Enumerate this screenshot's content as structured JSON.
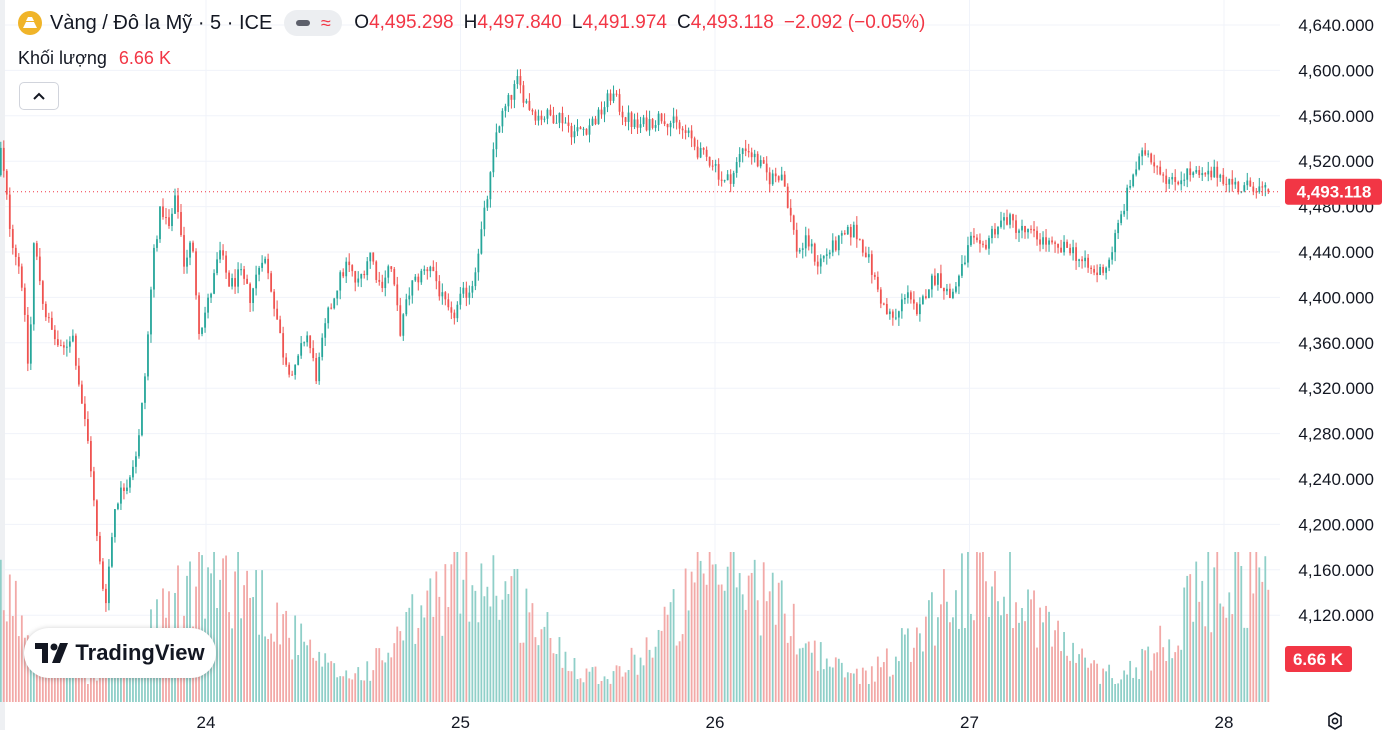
{
  "header": {
    "symbol_title": "Vàng / Đô la Mỹ · 5 · ICE",
    "symbol_icon": "gold-bars-icon",
    "ohlc": [
      {
        "key": "O",
        "value": "4,495.298"
      },
      {
        "key": "H",
        "value": "4,497.840"
      },
      {
        "key": "L",
        "value": "4,491.974"
      },
      {
        "key": "C",
        "value": "4,493.118"
      }
    ],
    "change": "−2.092 (−0.05%)"
  },
  "volume_legend": {
    "label": "Khối lượng",
    "value": "6.66 K"
  },
  "watermark": {
    "text": "TradingView"
  },
  "colors": {
    "up": "#26a69a",
    "down": "#ef5350",
    "up_vol": "#8fcfc8",
    "down_vol": "#f2a9a7",
    "price_tag": "#f23645",
    "grid": "#f0f3fa",
    "axis_text": "#131722"
  },
  "chart_data": {
    "type": "candlestick",
    "interval": "5",
    "symbol": "Vàng / Đô la Mỹ",
    "exchange": "ICE",
    "y_ticks": [
      "4,120.000",
      "4,160.000",
      "4,200.000",
      "4,240.000",
      "4,280.000",
      "4,320.000",
      "4,360.000",
      "4,400.000",
      "4,440.000",
      "4,480.000",
      "4,520.000",
      "4,560.000",
      "4,600.000",
      "4,640.000"
    ],
    "y_tick_values": [
      4120,
      4160,
      4200,
      4240,
      4280,
      4320,
      4360,
      4400,
      4440,
      4480,
      4520,
      4560,
      4600,
      4640
    ],
    "y_scale": {
      "min": 4050,
      "max": 4660
    },
    "x_ticks": [
      "24",
      "25",
      "26",
      "27",
      "28"
    ],
    "x_range": [
      23.176,
      28.18
    ],
    "last_price": 4493.118,
    "last_price_label": "4,493.118",
    "last_volume_label": "6.66 K",
    "price_anchors": [
      [
        23.18,
        4490
      ],
      [
        23.2,
        4530
      ],
      [
        23.24,
        4455
      ],
      [
        23.28,
        4420
      ],
      [
        23.31,
        4330
      ],
      [
        23.33,
        4450
      ],
      [
        23.37,
        4390
      ],
      [
        23.4,
        4370
      ],
      [
        23.44,
        4350
      ],
      [
        23.48,
        4370
      ],
      [
        23.51,
        4320
      ],
      [
        23.55,
        4260
      ],
      [
        23.58,
        4180
      ],
      [
        23.61,
        4130
      ],
      [
        23.65,
        4220
      ],
      [
        23.7,
        4240
      ],
      [
        23.74,
        4270
      ],
      [
        23.77,
        4340
      ],
      [
        23.8,
        4440
      ],
      [
        23.83,
        4480
      ],
      [
        23.86,
        4460
      ],
      [
        23.89,
        4490
      ],
      [
        23.92,
        4430
      ],
      [
        23.95,
        4450
      ],
      [
        23.98,
        4370
      ],
      [
        24.02,
        4400
      ],
      [
        24.06,
        4440
      ],
      [
        24.1,
        4410
      ],
      [
        24.14,
        4420
      ],
      [
        24.18,
        4400
      ],
      [
        24.23,
        4440
      ],
      [
        24.27,
        4400
      ],
      [
        24.31,
        4350
      ],
      [
        24.35,
        4330
      ],
      [
        24.4,
        4370
      ],
      [
        24.44,
        4330
      ],
      [
        24.48,
        4380
      ],
      [
        24.52,
        4410
      ],
      [
        24.56,
        4430
      ],
      [
        24.6,
        4410
      ],
      [
        24.65,
        4440
      ],
      [
        24.69,
        4410
      ],
      [
        24.73,
        4430
      ],
      [
        24.77,
        4370
      ],
      [
        24.81,
        4410
      ],
      [
        24.85,
        4420
      ],
      [
        24.89,
        4430
      ],
      [
        24.93,
        4400
      ],
      [
        24.97,
        4380
      ],
      [
        25.01,
        4400
      ],
      [
        25.05,
        4410
      ],
      [
        25.09,
        4460
      ],
      [
        25.12,
        4500
      ],
      [
        25.15,
        4550
      ],
      [
        25.19,
        4570
      ],
      [
        25.23,
        4590
      ],
      [
        25.27,
        4570
      ],
      [
        25.31,
        4560
      ],
      [
        25.36,
        4560
      ],
      [
        25.4,
        4560
      ],
      [
        25.45,
        4545
      ],
      [
        25.5,
        4550
      ],
      [
        25.55,
        4560
      ],
      [
        25.6,
        4580
      ],
      [
        25.65,
        4560
      ],
      [
        25.7,
        4550
      ],
      [
        25.75,
        4555
      ],
      [
        25.8,
        4560
      ],
      [
        25.86,
        4550
      ],
      [
        25.91,
        4540
      ],
      [
        25.95,
        4525
      ],
      [
        26.0,
        4520
      ],
      [
        26.04,
        4500
      ],
      [
        26.08,
        4510
      ],
      [
        26.12,
        4535
      ],
      [
        26.17,
        4520
      ],
      [
        26.22,
        4505
      ],
      [
        26.27,
        4510
      ],
      [
        26.33,
        4440
      ],
      [
        26.37,
        4450
      ],
      [
        26.41,
        4430
      ],
      [
        26.45,
        4440
      ],
      [
        26.5,
        4450
      ],
      [
        26.55,
        4460
      ],
      [
        26.6,
        4440
      ],
      [
        26.64,
        4410
      ],
      [
        26.68,
        4385
      ],
      [
        26.72,
        4380
      ],
      [
        26.76,
        4410
      ],
      [
        26.8,
        4380
      ],
      [
        26.84,
        4410
      ],
      [
        26.88,
        4420
      ],
      [
        26.93,
        4400
      ],
      [
        26.97,
        4420
      ],
      [
        27.01,
        4450
      ],
      [
        27.05,
        4440
      ],
      [
        27.1,
        4460
      ],
      [
        27.15,
        4470
      ],
      [
        27.2,
        4460
      ],
      [
        27.25,
        4455
      ],
      [
        27.3,
        4450
      ],
      [
        27.35,
        4440
      ],
      [
        27.4,
        4445
      ],
      [
        27.45,
        4430
      ],
      [
        27.5,
        4420
      ],
      [
        27.55,
        4430
      ],
      [
        27.6,
        4470
      ],
      [
        27.65,
        4510
      ],
      [
        27.7,
        4530
      ],
      [
        27.75,
        4515
      ],
      [
        27.8,
        4500
      ],
      [
        27.86,
        4510
      ],
      [
        27.92,
        4505
      ],
      [
        27.98,
        4510
      ],
      [
        28.04,
        4500
      ],
      [
        28.08,
        4495
      ],
      [
        28.12,
        4500
      ],
      [
        28.16,
        4493
      ]
    ]
  }
}
